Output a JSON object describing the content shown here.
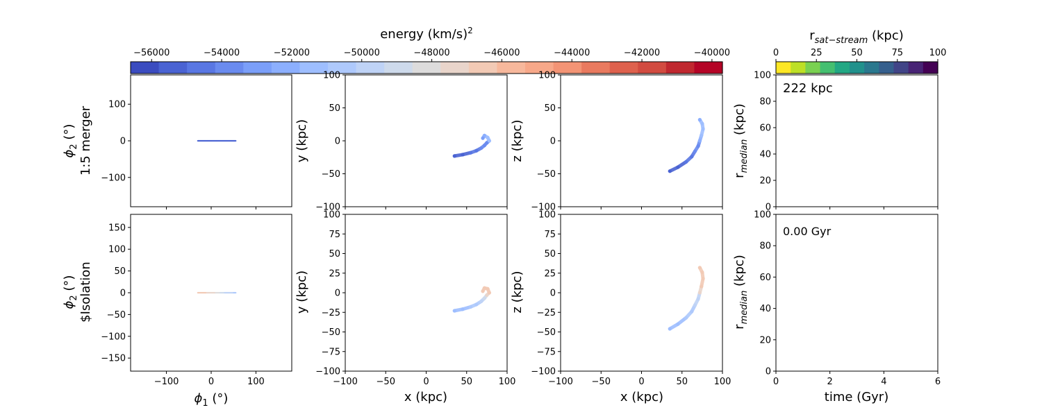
{
  "colorbar_energy": {
    "label": "energy (km/s)",
    "label_sup": "2",
    "ticks": [
      "−56000",
      "−54000",
      "−52000",
      "−50000",
      "−48000",
      "−46000",
      "−44000",
      "−42000",
      "−40000"
    ],
    "tick_values": [
      -56000,
      -54000,
      -52000,
      -50000,
      -48000,
      -46000,
      -44000,
      -42000,
      -40000
    ],
    "range": [
      -56600,
      -39700
    ],
    "colormap": "coolwarm",
    "colors": [
      "#3b4cc0",
      "#4a63d3",
      "#5977e3",
      "#6a8bef",
      "#7b9ff9",
      "#8caffe",
      "#9ebeff",
      "#aec9fc",
      "#bfd3f6",
      "#cedaeb",
      "#dddcdc",
      "#e9d5cb",
      "#f2cab5",
      "#f7b89c",
      "#f7a889",
      "#f39475",
      "#e97a5f",
      "#de614d",
      "#d24b40",
      "#c0282f",
      "#b40426"
    ]
  },
  "colorbar_radius": {
    "label_main": "r",
    "label_sub": "sat−stream",
    "label_unit": " (kpc)",
    "ticks": [
      "0",
      "25",
      "50",
      "75",
      "100"
    ],
    "tick_values": [
      0,
      25,
      50,
      75,
      100
    ],
    "colormap": "viridis_r",
    "colors": [
      "#fde725",
      "#bddf26",
      "#7ad151",
      "#44bf70",
      "#22a884",
      "#21918c",
      "#2a788e",
      "#355f8d",
      "#414487",
      "#482475",
      "#440154"
    ]
  },
  "rows": {
    "top": {
      "ylabel_line1": "1:5 merger",
      "annotation": "222 kpc"
    },
    "bottom": {
      "ylabel_line1": "$Isolation",
      "annotation": "0.00 Gyr"
    }
  },
  "axes": {
    "phi": {
      "xlabel_sym": "ϕ",
      "xlabel_sub": "1",
      "xlabel_unit": " (°)",
      "ylabel_sym": "ϕ",
      "ylabel_sub": "2",
      "ylabel_unit": " (°)",
      "xticks": [
        "−100",
        "0",
        "100"
      ],
      "xtick_values": [
        -100,
        0,
        100
      ],
      "yticks_top": [
        "−100",
        "0",
        "100"
      ],
      "ytick_values_top": [
        -100,
        0,
        100
      ],
      "yticks_bottom": [
        "−150",
        "−100",
        "−50",
        "0",
        "50",
        "100",
        "150"
      ],
      "ytick_values_bottom": [
        -150,
        -100,
        -50,
        0,
        50,
        100,
        150
      ],
      "xlim": [
        -180,
        180
      ],
      "ylim": [
        -180,
        180
      ]
    },
    "xy": {
      "xlabel": "x (kpc)",
      "ylabel": "y (kpc)",
      "ticks": [
        "−100",
        "−75",
        "−50",
        "−25",
        "0",
        "25",
        "50",
        "75",
        "100"
      ],
      "tick_values": [
        -100,
        -75,
        -50,
        -25,
        0,
        25,
        50,
        75,
        100
      ],
      "ticks_top_row": [
        "−100",
        "−50",
        "0",
        "50",
        "100"
      ],
      "tick_values_top_row": [
        -100,
        -50,
        0,
        50,
        100
      ],
      "lim": [
        -100,
        100
      ]
    },
    "xz": {
      "xlabel": "x (kpc)",
      "ylabel": "z (kpc)",
      "lim": [
        -100,
        100
      ]
    },
    "rmed": {
      "xlabel": "time (Gyr)",
      "ylabel_main": "r",
      "ylabel_sub": "median",
      "ylabel_unit": " (kpc)",
      "xticks": [
        "0",
        "2",
        "4",
        "6"
      ],
      "xtick_values": [
        0,
        2,
        4,
        6
      ],
      "yticks": [
        "0",
        "20",
        "40",
        "60",
        "80",
        "100"
      ],
      "ytick_values": [
        0,
        20,
        40,
        60,
        80,
        100
      ],
      "xlim": [
        0,
        6
      ],
      "ylim": [
        0,
        100
      ]
    }
  },
  "chart_data": [
    {
      "type": "scatter",
      "panel": "top phi1-phi2 (1:5 merger)",
      "x": [
        -30,
        -20,
        -10,
        0,
        10,
        20,
        30,
        40,
        50,
        55
      ],
      "y": [
        0,
        0,
        0,
        0,
        0,
        0,
        0,
        0,
        0,
        0
      ],
      "color_by": "energy",
      "energy": [
        -55000,
        -55000,
        -55000,
        -55000,
        -55000,
        -55000,
        -55000,
        -55000,
        -55000,
        -55000
      ],
      "xlabel": "ϕ₁ (°)",
      "ylabel": "ϕ₂ (°)",
      "xlim": [
        -180,
        180
      ],
      "ylim": [
        -180,
        180
      ]
    },
    {
      "type": "scatter",
      "panel": "top x-y (1:5 merger)",
      "x": [
        35,
        45,
        55,
        62,
        68,
        72,
        75,
        78,
        76,
        72,
        70
      ],
      "y": [
        -23,
        -21,
        -18,
        -15,
        -11,
        -7,
        -3,
        0,
        5,
        8,
        4
      ],
      "color_by": "energy",
      "energy": [
        -55000,
        -55000,
        -54500,
        -54500,
        -54000,
        -54000,
        -53500,
        -51000,
        -51000,
        -52000,
        -53000
      ],
      "xlabel": "x (kpc)",
      "ylabel": "y (kpc)",
      "xlim": [
        -100,
        100
      ],
      "ylim": [
        -100,
        100
      ]
    },
    {
      "type": "scatter",
      "panel": "top x-z (1:5 merger)",
      "x": [
        35,
        45,
        55,
        62,
        66,
        70,
        72,
        74,
        76,
        75,
        72
      ],
      "z": [
        -46,
        -40,
        -32,
        -24,
        -16,
        -8,
        0,
        8,
        18,
        26,
        32
      ],
      "color_by": "energy",
      "energy": [
        -55000,
        -55000,
        -54500,
        -54500,
        -54000,
        -53500,
        -52000,
        -51000,
        -51000,
        -51500,
        -52000
      ],
      "xlabel": "x (kpc)",
      "ylabel": "z (kpc)",
      "xlim": [
        -100,
        100
      ],
      "ylim": [
        -100,
        100
      ]
    },
    {
      "type": "scatter",
      "panel": "bottom phi1-phi2 ($Isolation)",
      "x": [
        -30,
        -20,
        -10,
        0,
        10,
        20,
        30,
        40,
        50,
        55
      ],
      "y": [
        0,
        0,
        0,
        0,
        0,
        0,
        0,
        0,
        0,
        0
      ],
      "color_by": "energy",
      "energy": [
        -46500,
        -46500,
        -47000,
        -47500,
        -48000,
        -49000,
        -50000,
        -50000,
        -50500,
        -50500
      ],
      "xlabel": "ϕ₁ (°)",
      "ylabel": "ϕ₂ (°)",
      "xlim": [
        -180,
        180
      ],
      "ylim": [
        -180,
        180
      ]
    },
    {
      "type": "scatter",
      "panel": "bottom x-y ($Isolation)",
      "x": [
        35,
        45,
        55,
        62,
        68,
        72,
        75,
        78,
        76,
        72,
        70
      ],
      "y": [
        -23,
        -21,
        -18,
        -15,
        -11,
        -7,
        -3,
        0,
        5,
        6,
        2
      ],
      "color_by": "energy",
      "energy": [
        -51000,
        -51000,
        -50500,
        -50500,
        -50000,
        -49000,
        -47000,
        -46500,
        -46500,
        -46500,
        -46500
      ],
      "xlabel": "x (kpc)",
      "ylabel": "y (kpc)",
      "xlim": [
        -100,
        100
      ],
      "ylim": [
        -100,
        100
      ]
    },
    {
      "type": "scatter",
      "panel": "bottom x-z ($Isolation)",
      "x": [
        35,
        45,
        55,
        62,
        66,
        70,
        72,
        74,
        76,
        75,
        72
      ],
      "z": [
        -46,
        -40,
        -32,
        -24,
        -16,
        -8,
        0,
        8,
        18,
        26,
        32
      ],
      "color_by": "energy",
      "energy": [
        -51000,
        -51000,
        -50500,
        -50500,
        -50000,
        -49500,
        -47000,
        -46500,
        -46500,
        -46500,
        -46500
      ],
      "xlabel": "x (kpc)",
      "ylabel": "z (kpc)",
      "xlim": [
        -100,
        100
      ],
      "ylim": [
        -100,
        100
      ]
    },
    {
      "type": "line",
      "panel": "top r_median vs time",
      "x": [],
      "y": [],
      "xlabel": "",
      "ylabel": "r_median (kpc)",
      "xlim": [
        0,
        6
      ],
      "ylim": [
        0,
        100
      ]
    },
    {
      "type": "line",
      "panel": "bottom r_median vs time",
      "x": [],
      "y": [],
      "xlabel": "time (Gyr)",
      "ylabel": "r_median (kpc)",
      "xlim": [
        0,
        6
      ],
      "ylim": [
        0,
        100
      ]
    }
  ]
}
